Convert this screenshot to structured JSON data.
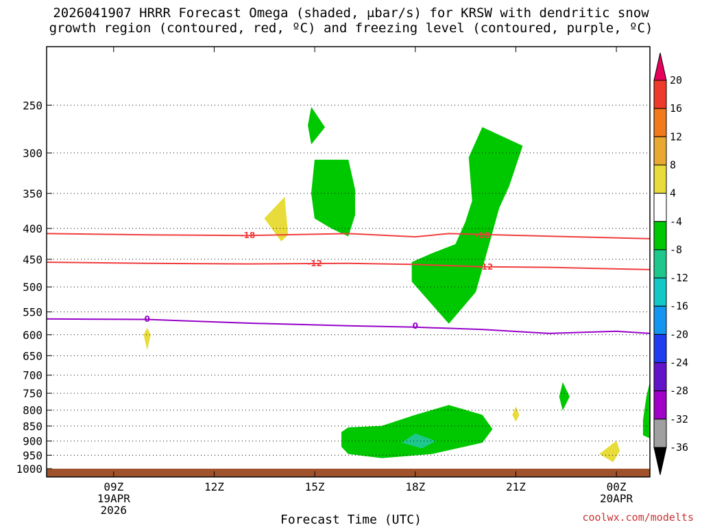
{
  "title": {
    "line1": "2026041907 HRRR Forecast Omega (shaded, μbar/s) for KRSW with dendritic snow",
    "line2": "growth region (contoured, red, ºC) and freezing level (contoured, purple, ºC)"
  },
  "watermark": "coolwx.com/modelts",
  "chart_data": {
    "type": "time-height contour",
    "xlabel": "Forecast Time (UTC)",
    "x_ticks": [
      {
        "hour": 9,
        "lines": [
          "09Z",
          "19APR",
          "2026"
        ]
      },
      {
        "hour": 12,
        "lines": [
          "12Z"
        ]
      },
      {
        "hour": 15,
        "lines": [
          "15Z"
        ]
      },
      {
        "hour": 18,
        "lines": [
          "18Z"
        ]
      },
      {
        "hour": 21,
        "lines": [
          "21Z"
        ]
      },
      {
        "hour": 24,
        "lines": [
          "00Z",
          "20APR"
        ]
      }
    ],
    "xlim_hours": [
      7,
      25
    ],
    "y_levels_hpa": [
      250,
      300,
      350,
      400,
      450,
      500,
      550,
      600,
      650,
      700,
      750,
      800,
      850,
      900,
      950,
      1000
    ],
    "ylim_hpa": [
      200,
      1000
    ],
    "y_scale": "log-pressure",
    "grid": "dotted horizontal at pressure levels",
    "colorbar": {
      "levels": [
        20,
        16,
        12,
        8,
        4,
        -4,
        -8,
        -12,
        -16,
        -20,
        -24,
        -28,
        -32,
        -36
      ],
      "colors": [
        "#e8005a",
        "#ee3a2a",
        "#f07a1c",
        "#e8a832",
        "#e8dc3a",
        "#ffffff",
        "#00c800",
        "#1ec88c",
        "#14c8c8",
        "#1496f0",
        "#1e3cf0",
        "#6414c8",
        "#a000c8",
        "#a0a0a0",
        "#000000"
      ]
    },
    "contours": [
      {
        "label": "-18",
        "color": "#f03c3c",
        "points": [
          [
            7,
            408
          ],
          [
            10,
            410
          ],
          [
            13,
            411
          ],
          [
            16,
            408
          ],
          [
            18,
            413
          ],
          [
            19,
            408
          ],
          [
            22,
            412
          ],
          [
            25,
            416
          ]
        ],
        "label_positions": [
          [
            13,
            411
          ],
          [
            20,
            411
          ]
        ]
      },
      {
        "label": "-12",
        "color": "#f03c3c",
        "points": [
          [
            7,
            455
          ],
          [
            10,
            457
          ],
          [
            13,
            458
          ],
          [
            16,
            457
          ],
          [
            18,
            459
          ],
          [
            20,
            463
          ],
          [
            22,
            464
          ],
          [
            25,
            468
          ]
        ],
        "label_positions": [
          [
            15,
            457
          ],
          [
            20.1,
            463
          ]
        ]
      },
      {
        "label": "0",
        "color": "#9600c8",
        "points": [
          [
            7,
            565
          ],
          [
            10,
            566
          ],
          [
            13,
            574
          ],
          [
            16,
            580
          ],
          [
            18,
            583
          ],
          [
            20,
            588
          ],
          [
            22,
            597
          ],
          [
            24,
            592
          ],
          [
            25,
            597
          ]
        ],
        "label_positions": [
          [
            10,
            565
          ],
          [
            18,
            580
          ]
        ]
      }
    ],
    "shaded_regions": [
      {
        "color": "#00c800",
        "points": [
          [
            14.9,
            252
          ],
          [
            15.3,
            272
          ],
          [
            14.9,
            290
          ],
          [
            14.8,
            270
          ]
        ]
      },
      {
        "color": "#00c800",
        "points": [
          [
            15,
            308
          ],
          [
            16,
            308
          ],
          [
            16.2,
            345
          ],
          [
            16.2,
            380
          ],
          [
            16,
            412
          ],
          [
            15.5,
            400
          ],
          [
            15,
            385
          ],
          [
            14.9,
            350
          ]
        ]
      },
      {
        "color": "#00c800",
        "points": [
          [
            20,
            272
          ],
          [
            21.2,
            292
          ],
          [
            20.8,
            340
          ],
          [
            20.5,
            370
          ],
          [
            20.2,
            425
          ],
          [
            19.8,
            510
          ],
          [
            19,
            575
          ],
          [
            17.9,
            490
          ],
          [
            17.9,
            455
          ],
          [
            18.5,
            440
          ],
          [
            19.2,
            425
          ],
          [
            19.5,
            390
          ],
          [
            19.7,
            360
          ],
          [
            19.6,
            305
          ]
        ]
      },
      {
        "color": "#00c800",
        "points": [
          [
            16,
            855
          ],
          [
            17,
            850
          ],
          [
            18,
            815
          ],
          [
            19,
            785
          ],
          [
            20,
            815
          ],
          [
            20.3,
            860
          ],
          [
            20,
            905
          ],
          [
            18.5,
            945
          ],
          [
            17,
            960
          ],
          [
            16,
            945
          ],
          [
            15.8,
            920
          ],
          [
            15.8,
            870
          ]
        ]
      },
      {
        "color": "#00c800",
        "points": [
          [
            22.4,
            720
          ],
          [
            22.6,
            760
          ],
          [
            22.4,
            800
          ],
          [
            22.3,
            760
          ]
        ]
      },
      {
        "color": "#00c800",
        "points": [
          [
            25,
            720
          ],
          [
            25,
            890
          ],
          [
            24.8,
            880
          ],
          [
            24.8,
            830
          ],
          [
            24.9,
            760
          ]
        ]
      },
      {
        "color": "#1ec88c",
        "points": [
          [
            18,
            875
          ],
          [
            18.6,
            900
          ],
          [
            18.2,
            925
          ],
          [
            17.6,
            905
          ]
        ]
      },
      {
        "color": "#e8dc3a",
        "points": [
          [
            14.1,
            355
          ],
          [
            14.2,
            410
          ],
          [
            14,
            420
          ],
          [
            13.5,
            385
          ]
        ]
      },
      {
        "color": "#e8dc3a",
        "points": [
          [
            10,
            585
          ],
          [
            10.1,
            600
          ],
          [
            10,
            635
          ],
          [
            9.9,
            600
          ]
        ]
      },
      {
        "color": "#e8dc3a",
        "points": [
          [
            21,
            790
          ],
          [
            21.1,
            815
          ],
          [
            21,
            835
          ],
          [
            20.9,
            815
          ]
        ]
      },
      {
        "color": "#e8dc3a",
        "points": [
          [
            24,
            900
          ],
          [
            24.1,
            935
          ],
          [
            23.9,
            975
          ],
          [
            23.5,
            945
          ]
        ]
      }
    ],
    "ground_color": "#a0522d"
  }
}
